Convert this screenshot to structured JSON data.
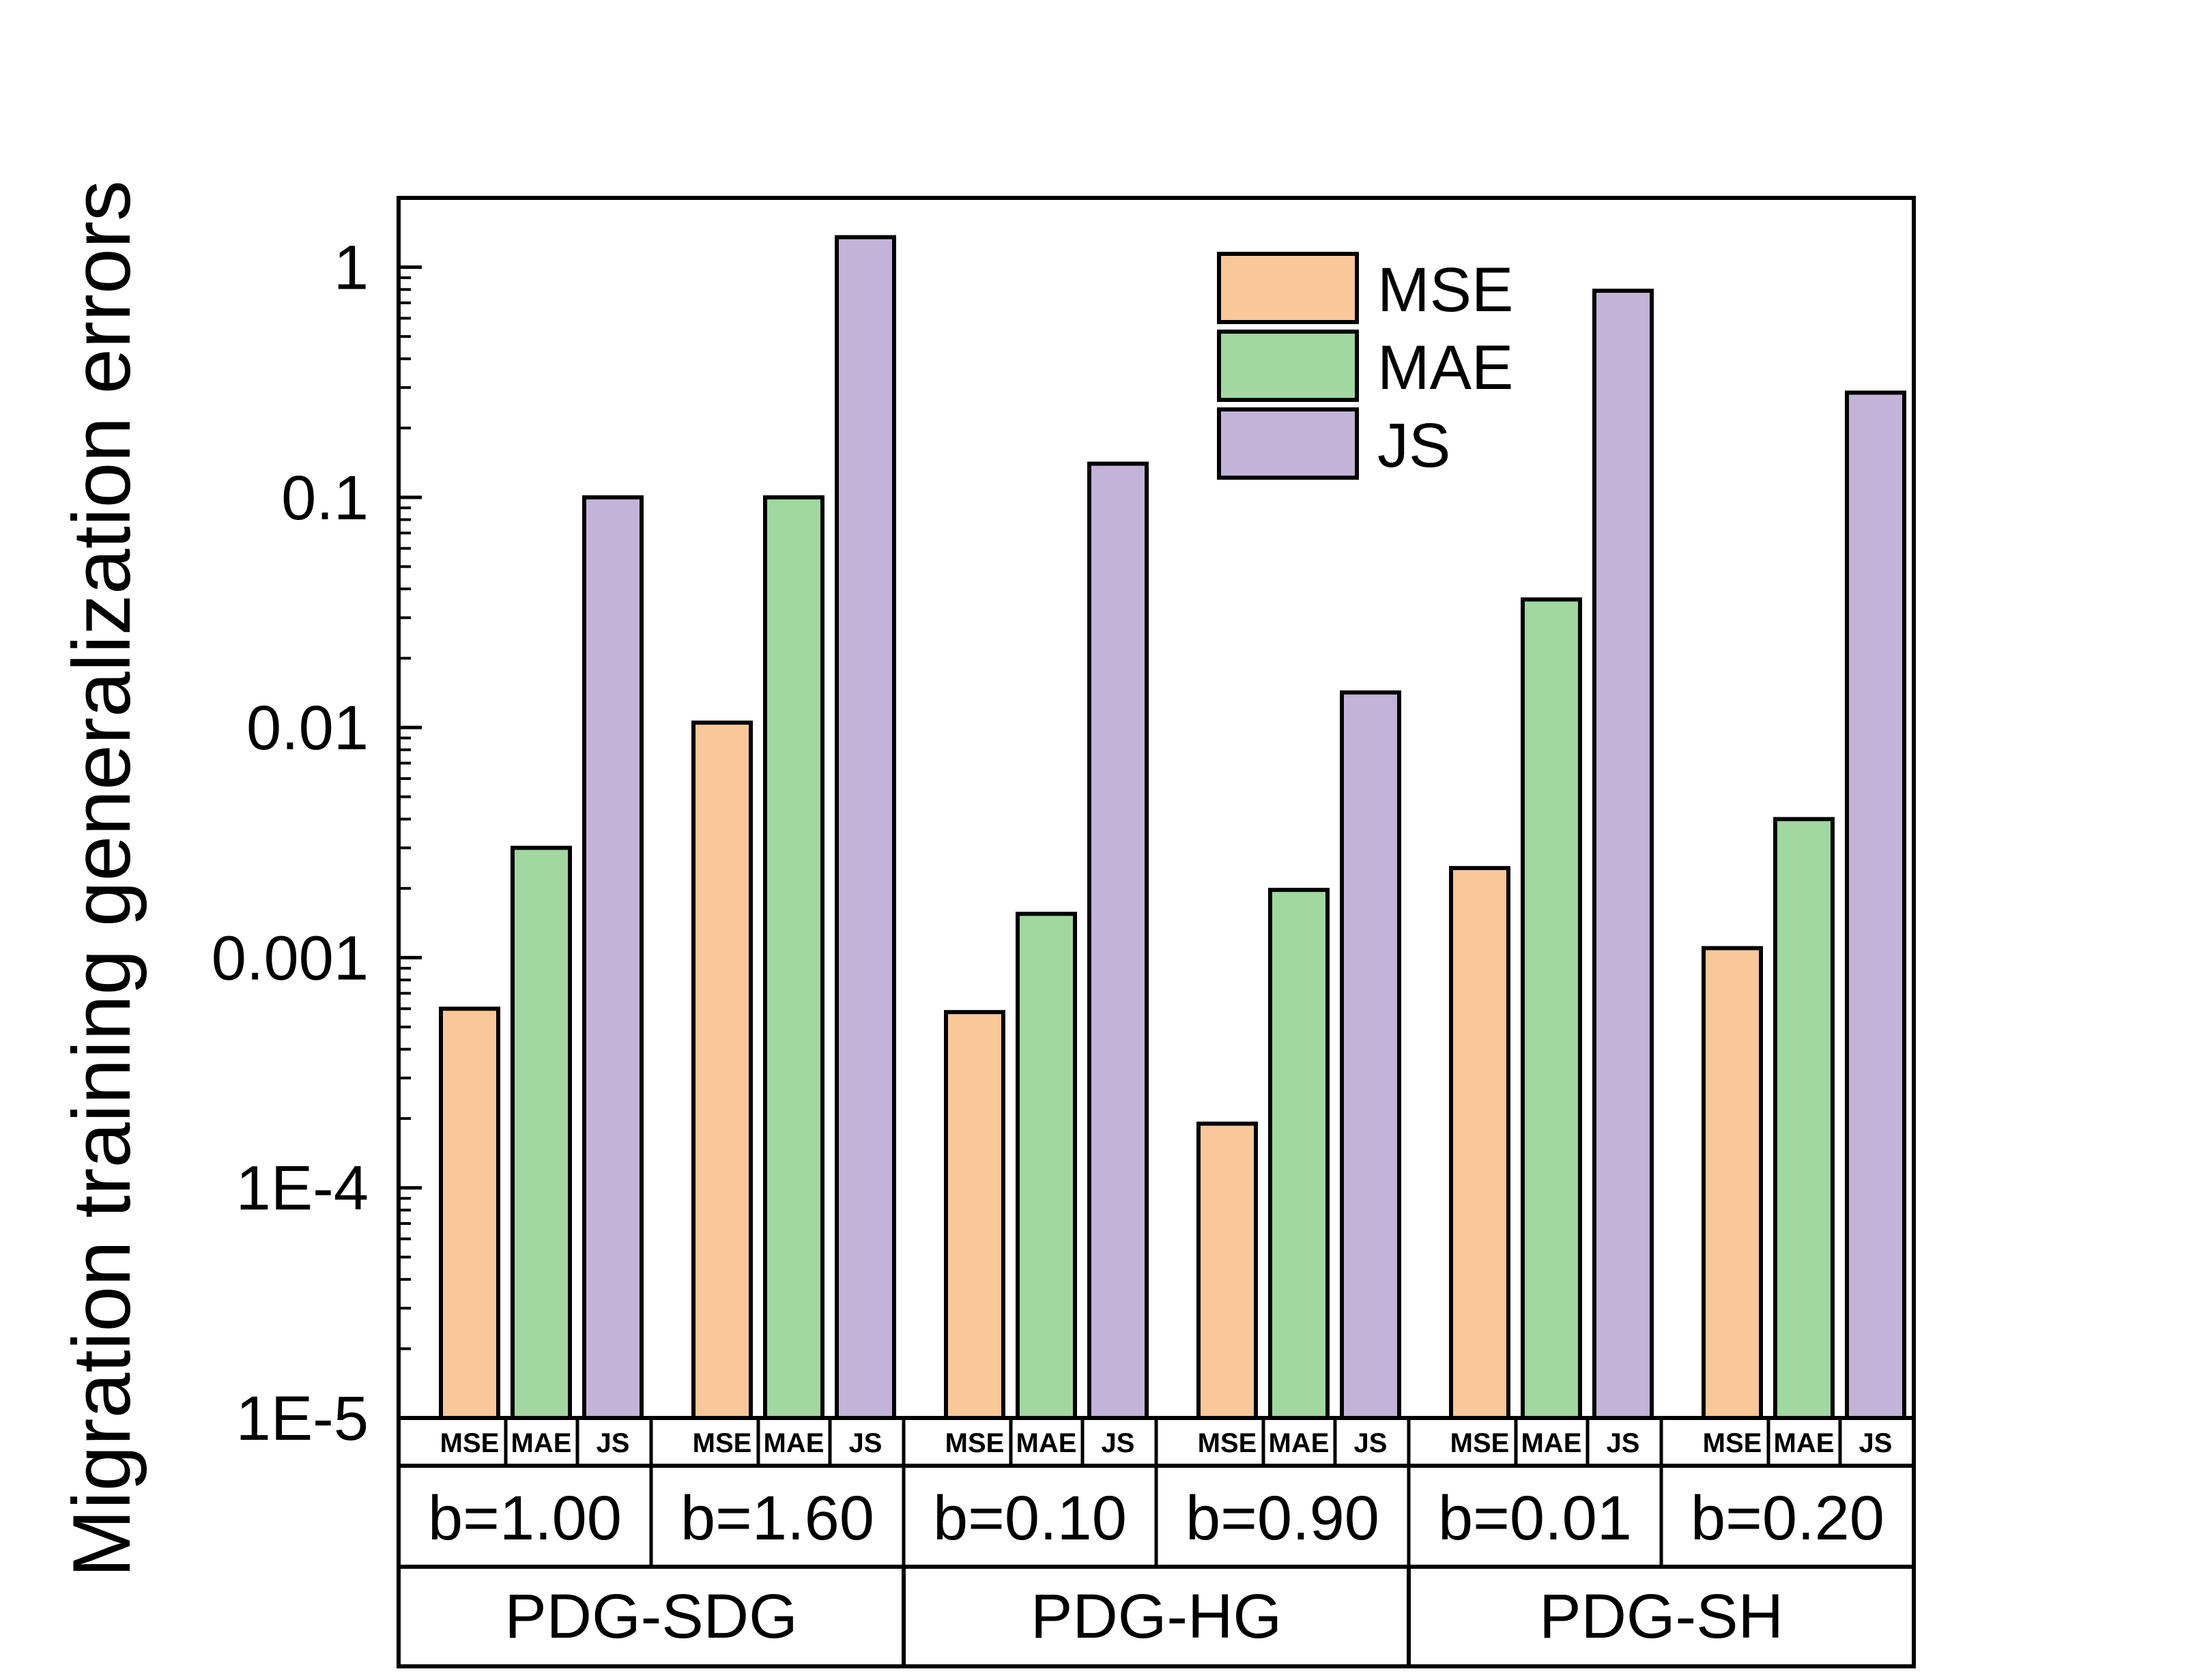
{
  "chart_data": {
    "type": "bar",
    "title": "",
    "ylabel": "Migration training generalization errors",
    "yscale": "log",
    "ylim": [
      1e-05,
      2
    ],
    "yticks": [
      {
        "value": 1,
        "label": "1"
      },
      {
        "value": 0.1,
        "label": "0.1"
      },
      {
        "value": 0.01,
        "label": "0.01"
      },
      {
        "value": 0.001,
        "label": "0.001"
      },
      {
        "value": 0.0001,
        "label": "1E-4"
      },
      {
        "value": 1e-05,
        "label": "1E-5"
      }
    ],
    "legend": {
      "position": "top-right",
      "entries": [
        {
          "name": "MSE",
          "color": "#FAC898"
        },
        {
          "name": "MAE",
          "color": "#A0D8A0"
        },
        {
          "name": "JS",
          "color": "#C3B3D8"
        }
      ]
    },
    "metric_colors": {
      "MSE": "#FAC898",
      "MAE": "#A0D8A0",
      "JS": "#C3B3D8"
    },
    "groups": [
      {
        "model": "PDG-SDG",
        "subgroups": [
          {
            "label": "b=1.00",
            "bars": [
              {
                "metric": "MSE",
                "value": 0.0006
              },
              {
                "metric": "MAE",
                "value": 0.003
              },
              {
                "metric": "JS",
                "value": 0.1
              }
            ]
          },
          {
            "label": "b=1.60",
            "bars": [
              {
                "metric": "MSE",
                "value": 0.0105
              },
              {
                "metric": "MAE",
                "value": 0.1
              },
              {
                "metric": "JS",
                "value": 1.35
              }
            ]
          }
        ]
      },
      {
        "model": "PDG-HG",
        "subgroups": [
          {
            "label": "b=0.10",
            "bars": [
              {
                "metric": "MSE",
                "value": 0.00058
              },
              {
                "metric": "MAE",
                "value": 0.00155
              },
              {
                "metric": "JS",
                "value": 0.14
              }
            ]
          },
          {
            "label": "b=0.90",
            "bars": [
              {
                "metric": "MSE",
                "value": 0.00019
              },
              {
                "metric": "MAE",
                "value": 0.00197
              },
              {
                "metric": "JS",
                "value": 0.0142
              }
            ]
          }
        ]
      },
      {
        "model": "PDG-SH",
        "subgroups": [
          {
            "label": "b=0.01",
            "bars": [
              {
                "metric": "MSE",
                "value": 0.00245
              },
              {
                "metric": "MAE",
                "value": 0.036
              },
              {
                "metric": "JS",
                "value": 0.79
              }
            ]
          },
          {
            "label": "b=0.20",
            "bars": [
              {
                "metric": "MSE",
                "value": 0.0011
              },
              {
                "metric": "MAE",
                "value": 0.004
              },
              {
                "metric": "JS",
                "value": 0.285
              }
            ]
          }
        ]
      }
    ]
  }
}
